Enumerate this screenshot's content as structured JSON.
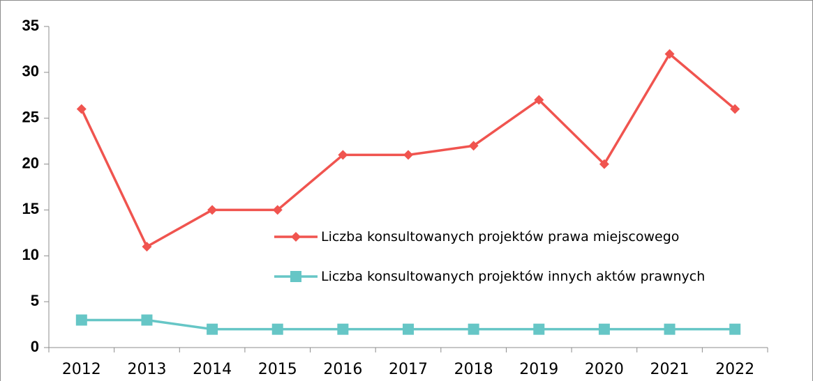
{
  "chart_data": {
    "type": "line",
    "categories": [
      "2012",
      "2013",
      "2014",
      "2015",
      "2016",
      "2017",
      "2018",
      "2019",
      "2020",
      "2021",
      "2022"
    ],
    "series": [
      {
        "name": "Liczba konsultowanych projektów prawa miejscowego",
        "color": "#f0544f",
        "marker": "diamond",
        "values": [
          26,
          11,
          15,
          15,
          21,
          21,
          22,
          27,
          20,
          32,
          26
        ]
      },
      {
        "name": "Liczba konsultowanych projektów innych aktów prawnych",
        "color": "#66c6c6",
        "marker": "square",
        "values": [
          3,
          3,
          2,
          2,
          2,
          2,
          2,
          2,
          2,
          2,
          2
        ]
      }
    ],
    "ylim": [
      0,
      35
    ],
    "yticks": [
      0,
      5,
      10,
      15,
      20,
      25,
      30,
      35
    ],
    "grid": false
  }
}
